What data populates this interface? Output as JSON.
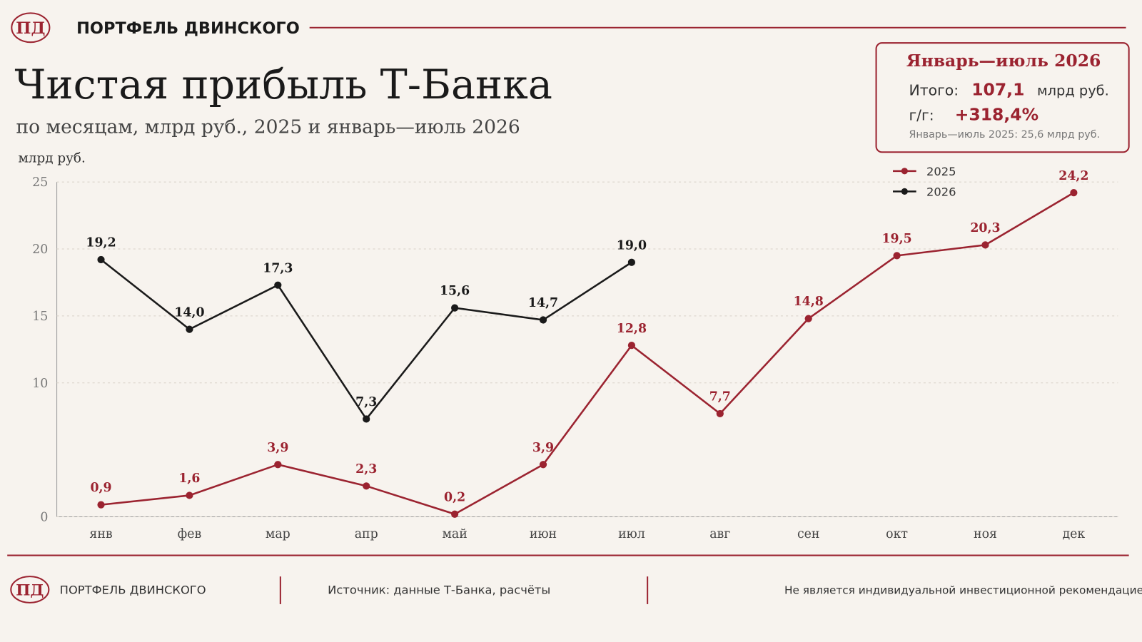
{
  "header": {
    "logo": "ПД",
    "brand": "ПОРТФЕЛЬ ДВИНСКОГО"
  },
  "summary": {
    "title": "Январь—июль 2026",
    "total_label": "Итого:",
    "total": "107,1",
    "total_unit": "млрд руб.",
    "yoy_label": "г/г:",
    "yoy": "+318,4%",
    "note": "Январь—июль 2025: 25,6 млрд руб."
  },
  "chart_data": {
    "type": "line",
    "title": "Чистая прибыль Т-Банка",
    "subtitle": "по месяцам, млрд руб., 2025 и январь—июль 2026",
    "y_label": "млрд руб.",
    "categories": [
      "янв",
      "фев",
      "мар",
      "апр",
      "май",
      "июн",
      "июл",
      "авг",
      "сен",
      "окт",
      "ноя",
      "дек"
    ],
    "series": [
      {
        "name": "2025",
        "color": "#9b2330",
        "values": [
          0.9,
          1.6,
          3.9,
          2.3,
          0.2,
          3.9,
          12.8,
          7.7,
          14.8,
          19.5,
          20.3,
          24.2
        ],
        "value_labels": [
          "0,9",
          "1,6",
          "3,9",
          "2,3",
          "0,2",
          "3,9",
          "12,8",
          "7,7",
          "14,8",
          "19,5",
          "20,3",
          "24,2"
        ]
      },
      {
        "name": "2026",
        "color": "#1a1a1a",
        "values": [
          19.2,
          14.0,
          17.3,
          7.3,
          15.6,
          14.7,
          19.0,
          null,
          null,
          null,
          null,
          null
        ],
        "value_labels": [
          "19,2",
          "14,0",
          "17,3",
          "7,3",
          "15,6",
          "14,7",
          "19,0",
          null,
          null,
          null,
          null,
          null
        ]
      }
    ],
    "ylim": [
      0,
      25
    ],
    "yticks": [
      0,
      10,
      15,
      20,
      25
    ],
    "grid": true,
    "legend": "upper right"
  },
  "footer": {
    "logo": "ПД",
    "brand": "ПОРТФЕЛЬ ДВИНСКОГО",
    "source": "Источник: данные Т-Банка, расчёты",
    "disclaimer": "Не является индивидуальной инвестиционной рекомендацией"
  }
}
